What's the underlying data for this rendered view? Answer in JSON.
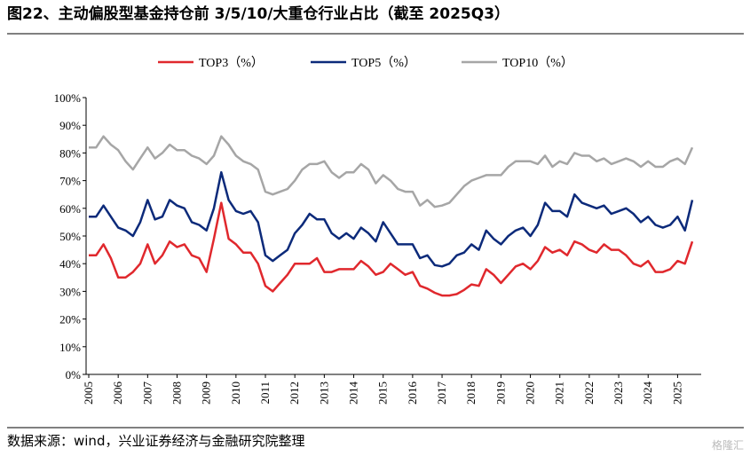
{
  "chart_data": {
    "type": "line",
    "title": "图22、主动偏股型基金持仓前 3/5/10/大重仓行业占比（截至 2025Q3）",
    "source": "数据来源：wind，兴业证券经济与金融研究院整理",
    "watermark": "格隆汇",
    "categories": [
      "2005",
      null,
      null,
      null,
      "2006",
      null,
      null,
      null,
      "2007",
      null,
      null,
      null,
      "2008",
      null,
      null,
      null,
      "2009",
      null,
      null,
      null,
      "2010",
      null,
      null,
      null,
      "2011",
      null,
      null,
      null,
      "2012",
      null,
      null,
      null,
      "2013",
      null,
      null,
      null,
      "2014",
      null,
      null,
      null,
      "2015",
      null,
      null,
      null,
      "2016",
      null,
      null,
      null,
      "2017",
      null,
      null,
      null,
      "2018",
      null,
      null,
      null,
      "2019",
      null,
      null,
      null,
      "2020",
      null,
      null,
      null,
      "2021",
      null,
      null,
      null,
      "2022",
      null,
      null,
      null,
      "2023",
      null,
      null,
      null,
      "2024",
      null,
      null,
      null,
      "2025",
      null,
      null
    ],
    "series": [
      {
        "name": "TOP3（%）",
        "color": "#e0282d",
        "values": [
          43,
          43,
          47,
          42,
          35,
          35,
          37,
          40,
          47,
          40,
          43,
          48,
          46,
          47,
          43,
          42,
          37,
          49,
          62,
          49,
          47,
          44,
          44,
          40,
          32,
          30,
          33,
          36,
          40,
          40,
          40,
          42,
          37,
          37,
          38,
          38,
          38,
          41,
          39,
          36,
          37,
          40,
          38,
          36,
          37,
          32,
          31,
          29.5,
          28.5,
          28.5,
          29,
          30.5,
          32.5,
          32,
          38,
          36,
          33,
          36,
          39,
          40,
          38,
          41,
          46,
          44,
          45,
          43,
          48,
          47,
          45,
          44,
          47,
          45,
          45,
          43,
          40,
          39,
          41,
          37,
          37,
          38,
          41,
          40,
          48
        ]
      },
      {
        "name": "TOP5（%）",
        "color": "#0c2a7a",
        "values": [
          57,
          57,
          61,
          57,
          53,
          52,
          50,
          55,
          63,
          56,
          57,
          63,
          61,
          60,
          55,
          54,
          52,
          60,
          73,
          63,
          59,
          58,
          59,
          55,
          43,
          41,
          43,
          45,
          51,
          54,
          58,
          56,
          56,
          51,
          49,
          51,
          49,
          53,
          51,
          48,
          55,
          51,
          47,
          47,
          47,
          42,
          43,
          39.5,
          39,
          40,
          43,
          44,
          47,
          45,
          52,
          49,
          47,
          50,
          52,
          53,
          50,
          54,
          62,
          59,
          59,
          57,
          65,
          62,
          61,
          60,
          61,
          58,
          59,
          60,
          58,
          55,
          57,
          54,
          53,
          54,
          57,
          52,
          63
        ]
      },
      {
        "name": "TOP10（%）",
        "color": "#a6a6a6",
        "values": [
          82,
          82,
          86,
          83,
          81,
          77,
          74,
          78,
          82,
          78,
          80,
          83,
          81,
          81,
          79,
          78,
          76,
          79,
          86,
          83,
          79,
          77,
          76,
          74,
          66,
          65,
          66,
          67,
          70,
          74,
          76,
          76,
          77,
          73,
          71,
          73,
          73,
          76,
          74,
          69,
          72,
          70,
          67,
          66,
          66,
          61,
          63,
          60.5,
          61,
          62,
          65,
          68,
          70,
          71,
          72,
          72,
          72,
          75,
          77,
          77,
          77,
          76,
          79,
          75,
          77,
          76,
          80,
          79,
          79,
          77,
          78,
          76,
          77,
          78,
          77,
          75,
          77,
          75,
          75,
          77,
          78,
          76,
          82
        ]
      }
    ],
    "ylim": [
      0,
      100
    ],
    "yticks": [
      {
        "value": 0,
        "label": "0%"
      },
      {
        "value": 10,
        "label": "10%"
      },
      {
        "value": 20,
        "label": "20%"
      },
      {
        "value": 30,
        "label": "30%"
      },
      {
        "value": 40,
        "label": "40%"
      },
      {
        "value": 50,
        "label": "50%"
      },
      {
        "value": 60,
        "label": "60%"
      },
      {
        "value": 70,
        "label": "70%"
      },
      {
        "value": 80,
        "label": "80%"
      },
      {
        "value": 90,
        "label": "90%"
      },
      {
        "value": 100,
        "label": "100%"
      }
    ],
    "legend": "top",
    "grid": false
  }
}
